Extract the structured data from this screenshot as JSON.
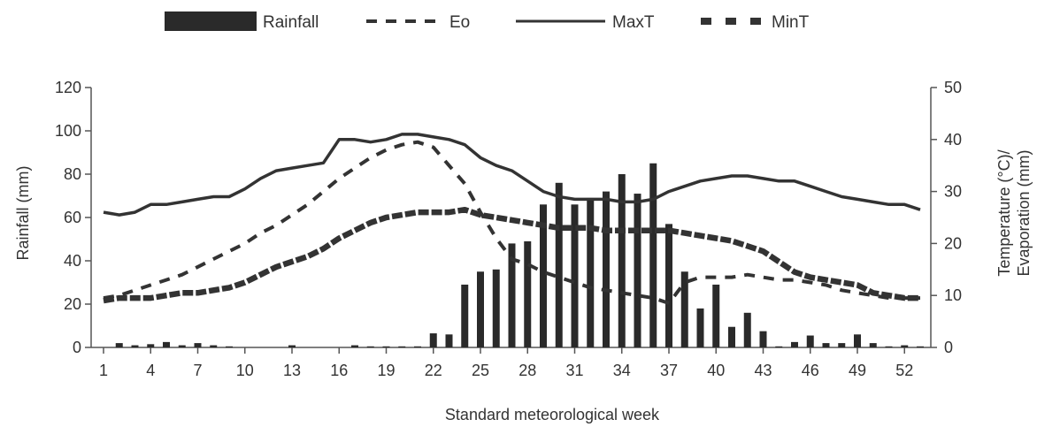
{
  "chart_data": {
    "type": "bar+line",
    "xlabel": "Standard meteorological week",
    "ylabel_left": "Rainfall (mm)",
    "ylabel_right_line1": "Temperature (°C)/",
    "ylabel_right_line2": "Evaporation (mm)",
    "xlim": [
      1,
      53
    ],
    "ylim_left": [
      0,
      120
    ],
    "ylim_right": [
      0,
      50
    ],
    "x_ticks": [
      1,
      4,
      7,
      10,
      13,
      16,
      19,
      22,
      25,
      28,
      31,
      34,
      37,
      40,
      43,
      46,
      49,
      52
    ],
    "y_ticks_left": [
      0,
      20,
      40,
      60,
      80,
      100,
      120
    ],
    "y_ticks_right": [
      0,
      10,
      20,
      30,
      40,
      50
    ],
    "legend": [
      {
        "name": "Rainfall",
        "style": "bar"
      },
      {
        "name": "Eo",
        "style": "dashed"
      },
      {
        "name": "MaxT",
        "style": "solid"
      },
      {
        "name": "MinT",
        "style": "thick-dashed"
      }
    ],
    "legend_position": "top",
    "grid": false,
    "weeks": [
      1,
      2,
      3,
      4,
      5,
      6,
      7,
      8,
      9,
      10,
      11,
      12,
      13,
      14,
      15,
      16,
      17,
      18,
      19,
      20,
      21,
      22,
      23,
      24,
      25,
      26,
      27,
      28,
      29,
      30,
      31,
      32,
      33,
      34,
      35,
      36,
      37,
      38,
      39,
      40,
      41,
      42,
      43,
      44,
      45,
      46,
      47,
      48,
      49,
      50,
      51,
      52,
      53
    ],
    "series": [
      {
        "name": "Rainfall",
        "axis": "left",
        "style": "bar",
        "color": "#2a2a2a",
        "values": [
          0,
          2,
          1,
          1.5,
          2.5,
          1,
          2,
          1,
          0.5,
          0,
          0,
          0,
          1,
          0,
          0,
          0,
          1,
          0.5,
          0.5,
          0.5,
          0.5,
          6.5,
          6,
          29,
          35,
          36,
          48,
          49,
          66,
          76,
          66,
          69,
          72,
          80,
          71,
          85,
          57,
          35,
          18,
          29,
          9.5,
          16,
          7.5,
          0.5,
          2.5,
          5.5,
          2,
          2,
          6,
          2,
          0.5,
          1,
          0.5
        ]
      },
      {
        "name": "Eo",
        "axis": "right",
        "style": "dashed",
        "color": "#333333",
        "values": [
          9.5,
          10,
          11,
          12,
          13,
          14,
          15.5,
          17,
          18.5,
          20,
          22,
          23.5,
          25.5,
          27.5,
          30,
          32.5,
          34.5,
          36.5,
          38,
          39,
          39.5,
          38.5,
          35,
          31.5,
          26,
          21,
          17,
          16,
          14.5,
          13.5,
          12.5,
          11.5,
          11,
          10.5,
          10,
          9.5,
          8.5,
          12.5,
          13.5,
          13.5,
          13.5,
          14,
          13.5,
          13,
          13,
          12.5,
          12,
          11,
          10.5,
          10,
          9.5,
          9.5,
          9.5
        ]
      },
      {
        "name": "MaxT",
        "axis": "right",
        "style": "solid",
        "color": "#333333",
        "values": [
          26,
          25.5,
          26,
          27.5,
          27.5,
          28,
          28.5,
          29,
          29,
          30.5,
          32.5,
          34,
          34.5,
          35,
          35.5,
          40,
          40,
          39.5,
          40,
          41,
          41,
          40.5,
          40,
          39,
          36.5,
          35,
          34,
          32,
          30,
          29,
          28.5,
          28.5,
          28.5,
          28,
          28,
          28.5,
          30,
          31,
          32,
          32.5,
          33,
          33,
          32.5,
          32,
          32,
          31,
          30,
          29,
          28.5,
          28,
          27.5,
          27.5,
          26.5
        ]
      },
      {
        "name": "MinT",
        "axis": "right",
        "style": "thick-dashed",
        "color": "#333333",
        "values": [
          9,
          9.5,
          9.5,
          9.5,
          10,
          10.5,
          10.5,
          11,
          11.5,
          12.5,
          14,
          15.5,
          16.5,
          17.5,
          19,
          21,
          22.5,
          24,
          25,
          25.5,
          26,
          26,
          26,
          26.5,
          25.5,
          25,
          24.5,
          24,
          23.5,
          23,
          23,
          23,
          22.5,
          22.5,
          22.5,
          22.5,
          22.5,
          22,
          21.5,
          21,
          20.5,
          19.5,
          18.5,
          16.5,
          14.5,
          13.5,
          13,
          12.5,
          12,
          10.5,
          10,
          9.5,
          9.5
        ]
      }
    ]
  }
}
